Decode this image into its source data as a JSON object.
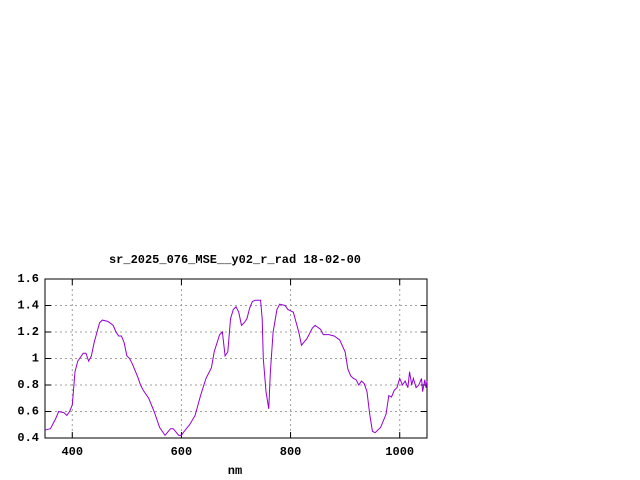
{
  "chart_data": {
    "type": "line",
    "title": "sr_2025_076_MSE__y02_r_rad 18-02-00",
    "x_label": "nm",
    "x": [
      350,
      360,
      370,
      375,
      385,
      390,
      395,
      400,
      405,
      410,
      420,
      425,
      430,
      435,
      440,
      450,
      455,
      465,
      475,
      480,
      485,
      490,
      495,
      500,
      505,
      510,
      520,
      525,
      530,
      540,
      550,
      560,
      570,
      580,
      585,
      595,
      600,
      605,
      615,
      625,
      635,
      645,
      655,
      660,
      670,
      675,
      680,
      685,
      690,
      695,
      700,
      705,
      710,
      715,
      720,
      725,
      730,
      735,
      745,
      748,
      750,
      755,
      760,
      763,
      768,
      775,
      780,
      790,
      795,
      805,
      815,
      820,
      830,
      840,
      845,
      855,
      860,
      870,
      880,
      890,
      900,
      905,
      910,
      915,
      920,
      925,
      930,
      935,
      940,
      945,
      950,
      955,
      965,
      975,
      980,
      985,
      990,
      995,
      1000,
      1005,
      1010,
      1015,
      1018,
      1022,
      1025,
      1030,
      1035,
      1040,
      1042,
      1046,
      1048,
      1050
    ],
    "values": [
      0.46,
      0.47,
      0.55,
      0.6,
      0.59,
      0.57,
      0.6,
      0.65,
      0.9,
      0.98,
      1.04,
      1.04,
      0.98,
      1.02,
      1.12,
      1.27,
      1.29,
      1.28,
      1.25,
      1.2,
      1.17,
      1.17,
      1.12,
      1.02,
      1.0,
      0.96,
      0.86,
      0.8,
      0.76,
      0.7,
      0.6,
      0.48,
      0.42,
      0.47,
      0.47,
      0.42,
      0.42,
      0.45,
      0.5,
      0.57,
      0.72,
      0.85,
      0.93,
      1.05,
      1.18,
      1.2,
      1.02,
      1.05,
      1.3,
      1.37,
      1.39,
      1.35,
      1.25,
      1.27,
      1.3,
      1.38,
      1.43,
      1.44,
      1.44,
      1.3,
      1.0,
      0.75,
      0.62,
      0.9,
      1.2,
      1.37,
      1.41,
      1.4,
      1.37,
      1.35,
      1.2,
      1.1,
      1.15,
      1.23,
      1.25,
      1.22,
      1.18,
      1.18,
      1.17,
      1.14,
      1.05,
      0.92,
      0.87,
      0.85,
      0.84,
      0.8,
      0.83,
      0.81,
      0.75,
      0.58,
      0.45,
      0.44,
      0.48,
      0.58,
      0.72,
      0.71,
      0.76,
      0.78,
      0.85,
      0.8,
      0.83,
      0.78,
      0.9,
      0.8,
      0.85,
      0.78,
      0.8,
      0.85,
      0.75,
      0.84,
      0.78,
      0.83
    ],
    "color": "#9400d3",
    "xlim": [
      350,
      1050
    ],
    "xticks": [
      400,
      600,
      800,
      1000
    ],
    "ylim": [
      0.4,
      1.6
    ],
    "yticks": [
      1.6,
      1.4,
      1.2,
      1,
      0.8,
      0.6,
      0.4
    ],
    "grid": true
  }
}
